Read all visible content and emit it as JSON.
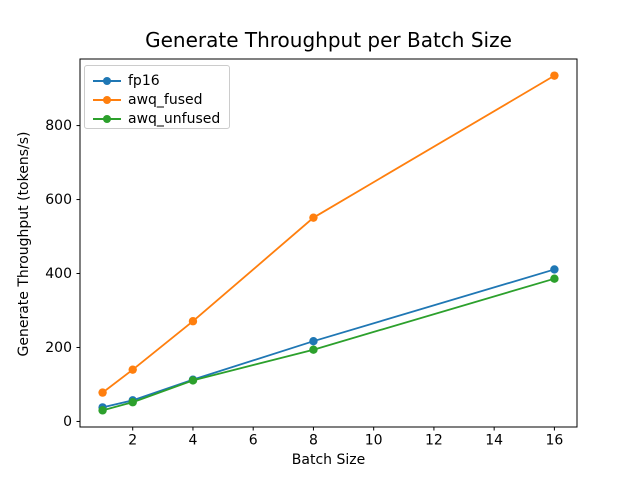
{
  "chart_data": {
    "type": "line",
    "title": "Generate Throughput per Batch Size",
    "xlabel": "Batch Size",
    "ylabel": "Generate Throughput (tokens/s)",
    "x": [
      1,
      2,
      4,
      8,
      16
    ],
    "series": [
      {
        "name": "fp16",
        "color": "#1f77b4",
        "values": [
          38,
          57,
          113,
          217,
          411
        ]
      },
      {
        "name": "awq_fused",
        "color": "#ff7f0e",
        "values": [
          78,
          140,
          271,
          551,
          935
        ]
      },
      {
        "name": "awq_unfused",
        "color": "#2ca02c",
        "values": [
          30,
          52,
          111,
          194,
          386
        ]
      }
    ],
    "xticks": [
      2,
      4,
      6,
      8,
      10,
      12,
      14,
      16
    ],
    "yticks": [
      0,
      200,
      400,
      600,
      800
    ],
    "xlim": [
      0.25,
      16.75
    ],
    "ylim": [
      -15,
      980
    ],
    "grid": false,
    "marker": "o",
    "legend_position": "upper left",
    "legend_entries": [
      "fp16",
      "awq_fused",
      "awq_unfused"
    ],
    "background": "#ffffff",
    "text_color": "#000000",
    "spine_color": "#000000",
    "legend_edge_color": "#cccccc"
  }
}
